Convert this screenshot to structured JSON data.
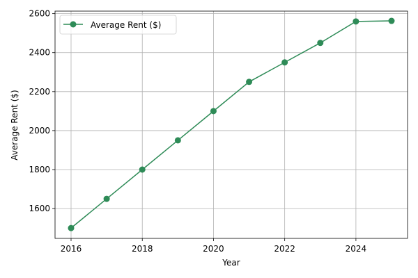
{
  "chart_data": {
    "type": "line",
    "title": "",
    "xlabel": "Year",
    "ylabel": "Average Rent ($)",
    "xlim": [
      2015.55,
      2025.45
    ],
    "ylim": [
      1447,
      2613
    ],
    "xticks": [
      2016,
      2018,
      2020,
      2022,
      2024
    ],
    "yticks": [
      1600,
      1800,
      2000,
      2200,
      2400,
      2600
    ],
    "grid": true,
    "legend_position": "top-left",
    "series": [
      {
        "name": "Average Rent ($)",
        "color": "#2e8b57",
        "marker": "circle",
        "x": [
          2016,
          2017,
          2018,
          2019,
          2020,
          2021,
          2022,
          2023,
          2024,
          2025
        ],
        "values": [
          1500,
          1650,
          1800,
          1950,
          2100,
          2250,
          2350,
          2450,
          2560,
          2563
        ]
      }
    ]
  }
}
